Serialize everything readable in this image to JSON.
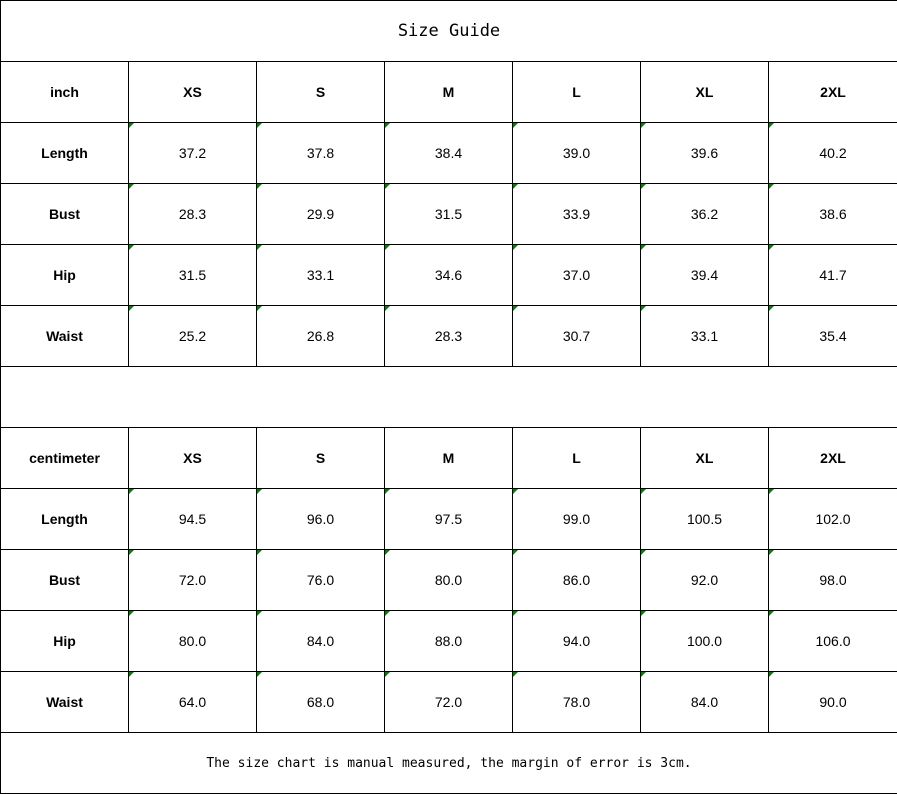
{
  "title": "Size Guide",
  "tables": [
    {
      "unit": "inch",
      "sizes": [
        "XS",
        "S",
        "M",
        "L",
        "XL",
        "2XL"
      ],
      "rows": [
        {
          "label": "Length",
          "values": [
            "37.2",
            "37.8",
            "38.4",
            "39.0",
            "39.6",
            "40.2"
          ]
        },
        {
          "label": "Bust",
          "values": [
            "28.3",
            "29.9",
            "31.5",
            "33.9",
            "36.2",
            "38.6"
          ]
        },
        {
          "label": "Hip",
          "values": [
            "31.5",
            "33.1",
            "34.6",
            "37.0",
            "39.4",
            "41.7"
          ]
        },
        {
          "label": "Waist",
          "values": [
            "25.2",
            "26.8",
            "28.3",
            "30.7",
            "33.1",
            "35.4"
          ]
        }
      ]
    },
    {
      "unit": "centimeter",
      "sizes": [
        "XS",
        "S",
        "M",
        "L",
        "XL",
        "2XL"
      ],
      "rows": [
        {
          "label": "Length",
          "values": [
            "94.5",
            "96.0",
            "97.5",
            "99.0",
            "100.5",
            "102.0"
          ]
        },
        {
          "label": "Bust",
          "values": [
            "72.0",
            "76.0",
            "80.0",
            "86.0",
            "92.0",
            "98.0"
          ]
        },
        {
          "label": "Hip",
          "values": [
            "80.0",
            "84.0",
            "88.0",
            "94.0",
            "100.0",
            "106.0"
          ]
        },
        {
          "label": "Waist",
          "values": [
            "64.0",
            "68.0",
            "72.0",
            "78.0",
            "84.0",
            "90.0"
          ]
        }
      ]
    }
  ],
  "note": "The size chart is manual measured, the margin of error is 3cm.",
  "colors": {
    "cell_marker": "#0a7a0a",
    "border": "#000000"
  }
}
